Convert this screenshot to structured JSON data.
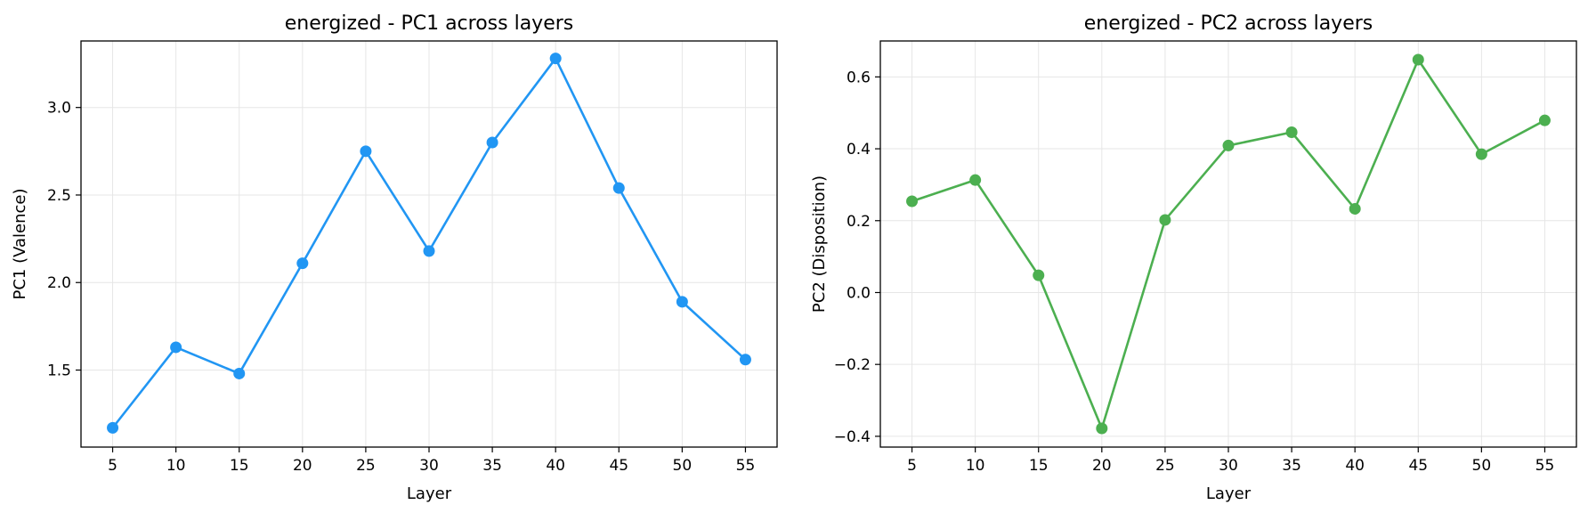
{
  "chart_data": [
    {
      "type": "line",
      "title": "energized - PC1 across layers",
      "xlabel": "Layer",
      "ylabel": "PC1 (Valence)",
      "x": [
        5,
        10,
        15,
        20,
        25,
        30,
        35,
        40,
        45,
        50,
        55
      ],
      "x_ticks": [
        5,
        10,
        15,
        20,
        25,
        30,
        35,
        40,
        45,
        50,
        55
      ],
      "y_ticks": [
        1.5,
        2.0,
        2.5,
        3.0
      ],
      "y_tick_labels": [
        "1.5",
        "2.0",
        "2.5",
        "3.0"
      ],
      "xlim": [
        2.5,
        57.5
      ],
      "ylim": [
        1.06,
        3.38
      ],
      "grid": true,
      "color": "#2196F3",
      "series": [
        {
          "values": [
            1.17,
            1.63,
            1.48,
            2.11,
            2.75,
            2.18,
            2.8,
            3.28,
            2.54,
            1.89,
            1.56
          ]
        }
      ]
    },
    {
      "type": "line",
      "title": "energized - PC2 across layers",
      "xlabel": "Layer",
      "ylabel": "PC2 (Disposition)",
      "x": [
        5,
        10,
        15,
        20,
        25,
        30,
        35,
        40,
        45,
        50,
        55
      ],
      "x_ticks": [
        5,
        10,
        15,
        20,
        25,
        30,
        35,
        40,
        45,
        50,
        55
      ],
      "y_ticks": [
        -0.4,
        -0.2,
        0.0,
        0.2,
        0.4,
        0.6
      ],
      "y_tick_labels": [
        "−0.4",
        "−0.2",
        "0.0",
        "0.2",
        "0.4",
        "0.6"
      ],
      "xlim": [
        2.5,
        57.5
      ],
      "ylim": [
        -0.43,
        0.7
      ],
      "grid": true,
      "color": "#4CAF50",
      "series": [
        {
          "values": [
            0.254,
            0.313,
            0.048,
            -0.378,
            0.202,
            0.409,
            0.446,
            0.233,
            0.648,
            0.385,
            0.479
          ]
        }
      ]
    }
  ]
}
